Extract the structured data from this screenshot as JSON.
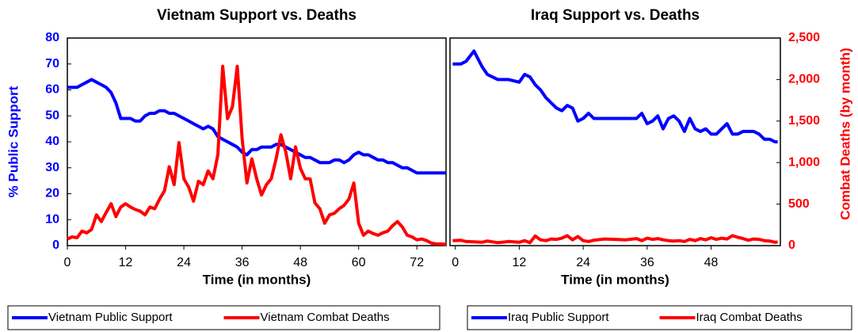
{
  "chart_data": [
    {
      "type": "line",
      "title": "Vietnam Support vs. Deaths",
      "xlabel": "Time (in months)",
      "ylabel": "% Public Support",
      "x": [
        0,
        1,
        2,
        3,
        4,
        5,
        6,
        7,
        8,
        9,
        10,
        11,
        12,
        13,
        14,
        15,
        16,
        17,
        18,
        19,
        20,
        21,
        22,
        23,
        24,
        25,
        26,
        27,
        28,
        29,
        30,
        31,
        32,
        33,
        34,
        35,
        36,
        37,
        38,
        39,
        40,
        41,
        42,
        43,
        44,
        45,
        46,
        47,
        48,
        49,
        50,
        51,
        52,
        53,
        54,
        55,
        56,
        57,
        58,
        59,
        60,
        61,
        62,
        63,
        64,
        65,
        66,
        67,
        68,
        69,
        70,
        71,
        72,
        73,
        74,
        75,
        76,
        77,
        78
      ],
      "series": [
        {
          "name": "Vietnam Public Support",
          "color": "#0000ff",
          "axis": "y",
          "values": [
            61,
            61,
            61,
            62,
            63,
            64,
            63,
            62,
            61,
            59,
            55,
            49,
            49,
            49,
            48,
            48,
            50,
            51,
            51,
            52,
            52,
            51,
            51,
            50,
            49,
            48,
            47,
            46,
            45,
            46,
            45,
            42,
            41,
            40,
            39,
            38,
            36,
            35,
            37,
            37,
            38,
            38,
            38,
            39,
            39,
            38,
            37,
            36,
            35,
            34,
            34,
            33,
            32,
            32,
            32,
            33,
            33,
            32,
            33,
            35,
            36,
            35,
            35,
            34,
            33,
            33,
            32,
            32,
            31,
            30,
            30,
            29,
            28,
            28,
            28,
            28,
            28,
            28,
            28
          ]
        },
        {
          "name": "Vietnam Combat Deaths",
          "color": "#ff0000",
          "axis": "y2",
          "values": [
            80,
            105,
            95,
            175,
            155,
            195,
            370,
            290,
            400,
            505,
            350,
            465,
            505,
            465,
            435,
            415,
            370,
            465,
            445,
            560,
            660,
            950,
            735,
            1240,
            805,
            705,
            535,
            775,
            735,
            900,
            805,
            1095,
            2160,
            1530,
            1675,
            2160,
            1290,
            755,
            1045,
            805,
            610,
            735,
            805,
            1045,
            1335,
            1125,
            805,
            1190,
            930,
            805,
            805,
            515,
            445,
            270,
            370,
            390,
            445,
            485,
            560,
            755,
            270,
            125,
            175,
            145,
            125,
            155,
            175,
            240,
            290,
            225,
            125,
            105,
            70,
            80,
            60,
            30,
            20,
            20,
            15
          ]
        }
      ],
      "xlim": [
        0,
        78
      ],
      "xticks": [
        0,
        12,
        24,
        36,
        48,
        60,
        72
      ],
      "ylim": [
        0,
        80
      ],
      "yticks": [
        0,
        10,
        20,
        30,
        40,
        50,
        60,
        70,
        80
      ],
      "y2lim": [
        0,
        2500
      ]
    },
    {
      "type": "line",
      "title": "Iraq Support vs. Deaths",
      "xlabel": "Time (in months)",
      "y2label": "Combat Deaths (by month)",
      "x": [
        -0.5,
        1,
        2,
        3.5,
        5,
        6,
        8,
        10,
        12,
        13,
        14,
        15,
        16,
        17,
        18,
        19,
        20,
        21,
        22,
        23,
        24,
        25,
        26,
        28,
        30,
        32,
        34,
        35,
        36,
        37,
        38,
        39,
        40,
        41,
        42,
        43,
        44,
        45,
        46,
        47,
        48,
        49,
        50,
        51,
        52,
        53,
        54,
        55,
        56,
        57,
        58,
        59,
        60,
        60.5
      ],
      "series": [
        {
          "name": "Iraq Public Support",
          "color": "#0000ff",
          "axis": "y",
          "values": [
            70,
            70,
            71,
            75,
            69,
            66,
            64,
            64,
            63,
            66,
            65,
            62,
            60,
            57,
            55,
            53,
            52,
            54,
            53,
            48,
            49,
            51,
            49,
            49,
            49,
            49,
            49,
            51,
            47,
            48,
            50,
            45,
            49,
            50,
            48,
            44,
            49,
            45,
            44,
            45,
            43,
            43,
            45,
            47,
            43,
            43,
            44,
            44,
            44,
            43,
            41,
            41,
            40,
            40
          ]
        },
        {
          "name": "Iraq Combat Deaths",
          "color": "#ff0000",
          "axis": "y2",
          "values": [
            60,
            65,
            50,
            45,
            40,
            55,
            35,
            50,
            40,
            60,
            35,
            115,
            70,
            60,
            80,
            75,
            90,
            120,
            70,
            110,
            60,
            50,
            65,
            80,
            75,
            70,
            85,
            60,
            90,
            75,
            85,
            70,
            60,
            55,
            60,
            50,
            75,
            60,
            85,
            70,
            95,
            75,
            90,
            80,
            120,
            100,
            85,
            65,
            80,
            75,
            60,
            55,
            40,
            45
          ]
        }
      ],
      "xlim": [
        -1,
        61
      ],
      "xticks": [
        0,
        12,
        24,
        36,
        48
      ],
      "ylim": [
        0,
        80
      ],
      "y2lim": [
        0,
        2500
      ],
      "y2ticks": [
        0,
        500,
        {
          "value": 1000,
          "label": "1,000"
        },
        {
          "value": 1500,
          "label": "1,500"
        },
        {
          "value": 2000,
          "label": "2,000"
        },
        {
          "value": 2500,
          "label": "2,500"
        }
      ]
    }
  ]
}
